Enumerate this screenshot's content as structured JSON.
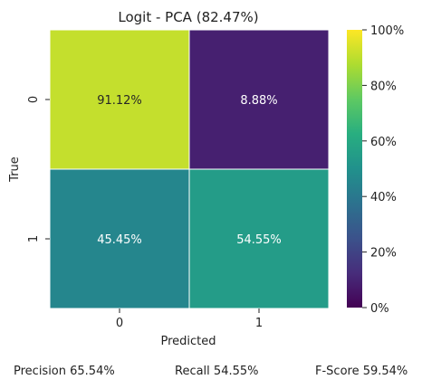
{
  "chart_data": {
    "type": "heatmap",
    "title": "Logit - PCA (82.47%)",
    "xlabel": "Predicted",
    "ylabel": "True",
    "x_categories": [
      "0",
      "1"
    ],
    "y_categories": [
      "0",
      "1"
    ],
    "values": [
      [
        91.12,
        8.88
      ],
      [
        45.45,
        54.55
      ]
    ],
    "cell_labels": [
      [
        "91.12%",
        "8.88%"
      ],
      [
        "45.45%",
        "54.55%"
      ]
    ],
    "colorbar": {
      "range": [
        0,
        100
      ],
      "ticks": [
        0,
        20,
        40,
        60,
        80,
        100
      ],
      "tick_labels": [
        "0%",
        "20%",
        "40%",
        "60%",
        "80%",
        "100%"
      ],
      "colormap": "viridis"
    }
  },
  "metrics": {
    "precision": "Precision 65.54%",
    "recall": "Recall 54.55%",
    "fscore": "F-Score 59.54%"
  }
}
